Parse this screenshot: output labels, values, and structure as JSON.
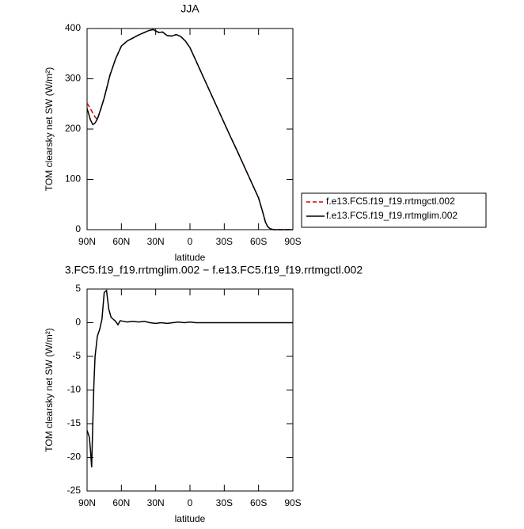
{
  "chart_data": [
    {
      "type": "line",
      "title": "JJA",
      "xlabel": "latitude",
      "ylabel": "TOM clearsky net SW (W/m²)",
      "x": [
        90,
        87,
        85,
        83,
        81,
        78,
        75,
        70,
        65,
        60,
        55,
        50,
        45,
        40,
        36,
        32,
        30,
        27,
        24,
        20,
        16,
        12,
        8,
        4,
        0,
        -5,
        -10,
        -15,
        -20,
        -25,
        -30,
        -35,
        -40,
        -45,
        -50,
        -55,
        -60,
        -63,
        -66,
        -68,
        -70,
        -73,
        -77,
        -80,
        -85,
        -90
      ],
      "series": [
        {
          "name": "f.e13.FC5.f19_f19.rrtmgctl.002",
          "color": "#d00000",
          "dashed": true,
          "values": [
            252,
            240,
            232,
            224,
            219,
            240,
            262,
            307,
            340,
            365,
            375,
            381,
            387,
            392,
            396,
            398,
            395,
            392,
            393,
            386,
            385,
            388,
            384,
            375,
            362,
            337,
            312,
            287,
            262,
            237,
            212,
            187,
            163,
            138,
            113,
            88,
            63,
            40,
            15,
            6,
            2,
            0,
            0,
            0,
            0,
            0
          ]
        },
        {
          "name": "f.e13.FC5.f19_f19.rrtmglim.002",
          "color": "#000000",
          "dashed": false,
          "values": [
            241,
            218,
            209,
            212,
            220,
            240,
            262,
            307,
            340,
            365,
            375,
            381,
            387,
            392,
            396,
            398,
            395,
            392,
            393,
            386,
            385,
            388,
            384,
            375,
            362,
            337,
            312,
            287,
            262,
            237,
            212,
            187,
            163,
            138,
            113,
            88,
            63,
            40,
            15,
            6,
            2,
            0,
            0,
            0,
            0,
            0
          ]
        }
      ],
      "xlim": [
        90,
        -90
      ],
      "xticks": [
        {
          "value": 90,
          "label": "90N"
        },
        {
          "value": 60,
          "label": "60N"
        },
        {
          "value": 30,
          "label": "30N"
        },
        0,
        {
          "value": -30,
          "label": "30S"
        },
        {
          "value": -60,
          "label": "60S"
        },
        {
          "value": -90,
          "label": "90S"
        }
      ],
      "ylim": [
        0,
        400
      ],
      "yticks": [
        0,
        100,
        200,
        300,
        400
      ],
      "legend": "right"
    },
    {
      "type": "line",
      "title": "3.FC5.f19_f19.rrtmglim.002 − f.e13.FC5.f19_f19.rrtmgctl.002",
      "xlabel": "latitude",
      "ylabel": "TOM clearsky net SW (W/m²)",
      "x": [
        90,
        88,
        87,
        86,
        85,
        84,
        83,
        81,
        79,
        77,
        75,
        73,
        71,
        69,
        67,
        65,
        63,
        61,
        58,
        55,
        50,
        45,
        40,
        35,
        30,
        25,
        20,
        15,
        10,
        5,
        0,
        -5,
        -10,
        -20,
        -30,
        -40,
        -50,
        -60,
        -70,
        -80,
        -90
      ],
      "values": [
        -16,
        -17,
        -19,
        -21.5,
        -15,
        -9,
        -5,
        -2,
        -1,
        0.5,
        4.5,
        4.8,
        2,
        0.8,
        0.5,
        0.2,
        -0.3,
        0.3,
        0.2,
        0.1,
        0.2,
        0.1,
        0.2,
        0,
        -0.1,
        0,
        -0.1,
        0,
        0.1,
        0,
        0.1,
        0,
        0,
        0,
        0,
        0,
        0,
        0,
        0,
        0,
        0
      ],
      "color": "#000000",
      "xlim": [
        90,
        -90
      ],
      "xticks": [
        {
          "value": 90,
          "label": "90N"
        },
        {
          "value": 60,
          "label": "60N"
        },
        {
          "value": 30,
          "label": "30N"
        },
        0,
        {
          "value": -30,
          "label": "30S"
        },
        {
          "value": -60,
          "label": "60S"
        },
        {
          "value": -90,
          "label": "90S"
        }
      ],
      "ylim": [
        -25,
        5
      ],
      "yticks": [
        -25,
        -20,
        -15,
        -10,
        -5,
        0,
        5
      ]
    }
  ]
}
